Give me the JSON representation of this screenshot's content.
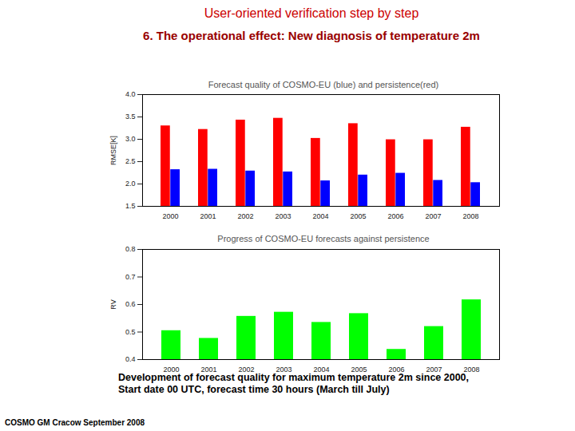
{
  "header": {
    "title": "User-oriented verification step by step",
    "subtitle": "6. The operational effect: New diagnosis of temperature 2m"
  },
  "caption": [
    "Development of forecast quality for maximum temperature 2m since 2000,",
    "Start date 00 UTC, forecast time 30 hours (March till July)"
  ],
  "footer": "COSMO GM Cracow September 2008",
  "chart_data": [
    {
      "type": "bar",
      "title": "Forecast quality of COSMO-EU (blue) and persistence(red)",
      "y_label": "RMSE[K]",
      "categories": [
        "2000",
        "2001",
        "2002",
        "2003",
        "2004",
        "2005",
        "2006",
        "2007",
        "2008"
      ],
      "series": [
        {
          "name": "persistence",
          "color": "#ff0000",
          "values": [
            3.3,
            3.22,
            3.43,
            3.47,
            3.02,
            3.35,
            2.99,
            2.99,
            3.27
          ]
        },
        {
          "name": "COSMO-EU",
          "color": "#0000ff",
          "values": [
            2.32,
            2.33,
            2.29,
            2.27,
            2.07,
            2.2,
            2.24,
            2.08,
            2.03
          ]
        }
      ],
      "ylim": [
        1.5,
        4.0
      ],
      "yticks": [
        1.5,
        {
          "value": 2,
          "label": "2.0"
        },
        2.5,
        {
          "value": 3,
          "label": "3.0"
        },
        3.5,
        {
          "value": 4,
          "label": "4.0"
        }
      ],
      "grid": false
    },
    {
      "type": "bar",
      "title": "Progress of COSMO-EU forecasts against persistence",
      "y_label": "RV",
      "categories": [
        "2000",
        "2001",
        "2002",
        "2003",
        "2004",
        "2005",
        "2006",
        "2007",
        "2008"
      ],
      "values": [
        0.505,
        0.477,
        0.557,
        0.572,
        0.535,
        0.567,
        0.437,
        0.52,
        0.617
      ],
      "color": "#00ff00",
      "ylim": [
        0.4,
        0.8
      ],
      "yticks": [
        0.4,
        0.5,
        0.6,
        0.7,
        0.8
      ],
      "grid": false
    }
  ]
}
